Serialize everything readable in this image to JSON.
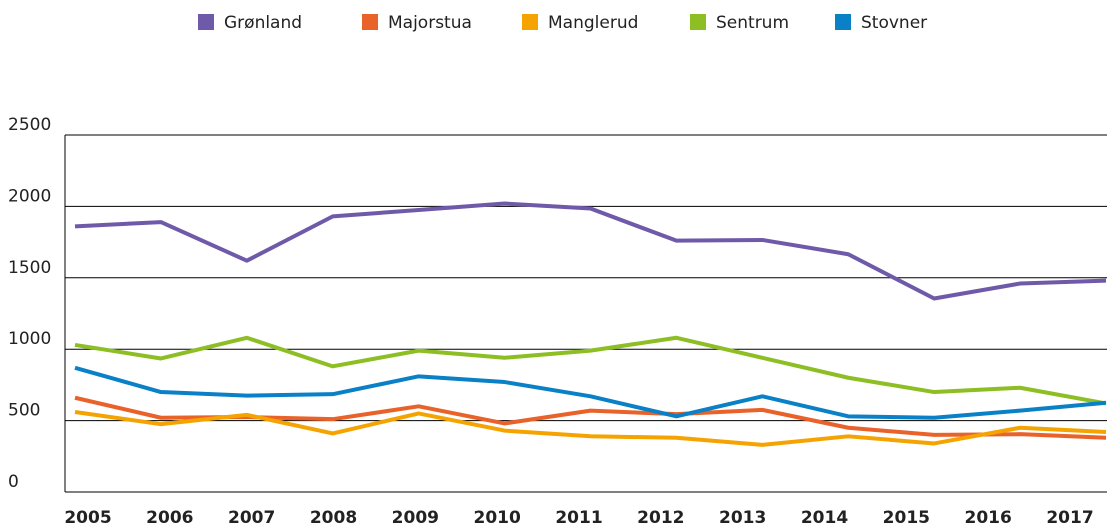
{
  "chart_data": {
    "type": "line",
    "categories": [
      "2005",
      "2006",
      "2007",
      "2008",
      "2009",
      "2010",
      "2011",
      "2012",
      "2013",
      "2014",
      "2015",
      "2016",
      "2017"
    ],
    "series": [
      {
        "name": "Grønland",
        "color": "#6e5aa8",
        "values": [
          1860,
          1890,
          1620,
          1930,
          1975,
          2020,
          1985,
          1760,
          1765,
          1665,
          1355,
          1460,
          1480
        ]
      },
      {
        "name": "Majorstua",
        "color": "#e8622a",
        "values": [
          660,
          520,
          525,
          510,
          600,
          480,
          570,
          545,
          575,
          450,
          400,
          405,
          380
        ]
      },
      {
        "name": "Manglerud",
        "color": "#f5a300",
        "values": [
          560,
          475,
          540,
          410,
          550,
          430,
          390,
          380,
          330,
          390,
          340,
          450,
          420
        ]
      },
      {
        "name": "Sentrum",
        "color": "#8dbe23",
        "values": [
          1030,
          935,
          1080,
          880,
          990,
          940,
          990,
          1080,
          940,
          800,
          700,
          730,
          620
        ]
      },
      {
        "name": "Stovner",
        "color": "#0a80c6",
        "values": [
          870,
          700,
          675,
          685,
          810,
          770,
          670,
          530,
          670,
          530,
          520,
          570,
          625
        ]
      }
    ],
    "ylim": [
      0,
      2500
    ],
    "yticks": [
      0,
      500,
      1000,
      1500,
      2000,
      2500
    ],
    "grid": true,
    "legend": "top"
  }
}
